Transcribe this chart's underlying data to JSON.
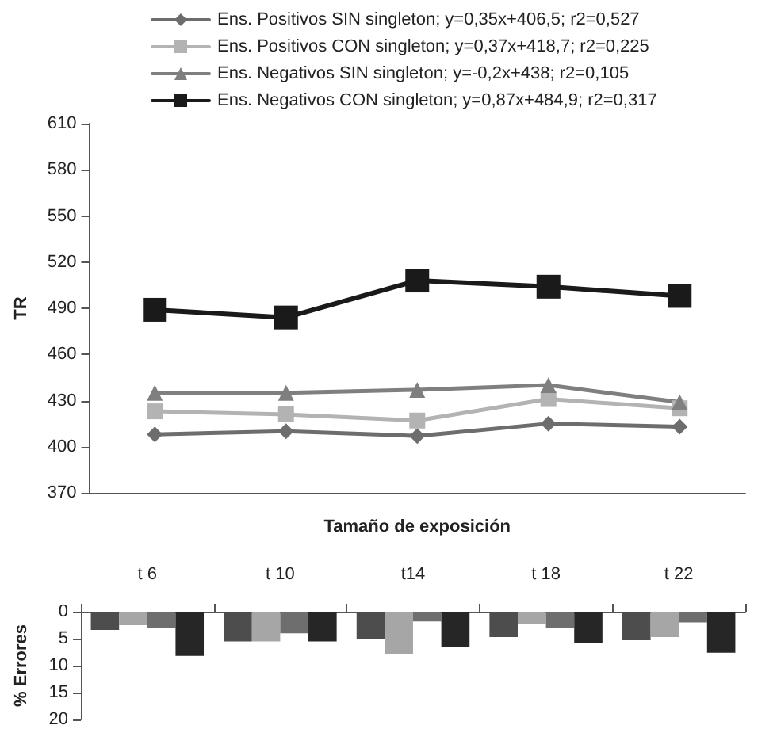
{
  "chart_data": [
    {
      "type": "line",
      "xlabel": "Tamaño de exposición",
      "ylabel": "TR",
      "categories": [
        null,
        null,
        null,
        null,
        null
      ],
      "tick_labels": "y",
      "ylim": [
        370,
        610
      ],
      "yticks": [
        370,
        400,
        430,
        460,
        490,
        520,
        550,
        580,
        610
      ],
      "grid": false,
      "legend": "top",
      "line_style": "solid",
      "series": [
        {
          "name": "Ens. Positivos SIN singleton; y=0,35x+406,5; r2=0,527",
          "color": "#6d6d6d",
          "marker": "diamond",
          "values": [
            408,
            410,
            407,
            415,
            413
          ]
        },
        {
          "name": "Ens. Positivos CON singleton; y=0,37x+418,7; r2=0,225",
          "color": "#b3b3b3",
          "marker": "square",
          "values": [
            423,
            421,
            417,
            431,
            425
          ]
        },
        {
          "name": "Ens. Negativos SIN singleton; y=-0,2x+438; r2=0,105",
          "color": "#7f7f7f",
          "marker": "triangle",
          "values": [
            435,
            435,
            437,
            440,
            429
          ]
        },
        {
          "name": "Ens. Negativos CON singleton; y=0,87x+484,9; r2=0,317",
          "color": "#1a1a1a",
          "marker": "square",
          "values": [
            489,
            484,
            508,
            504,
            498
          ]
        }
      ]
    },
    {
      "type": "bar",
      "ylabel": "% Errores",
      "categories": [
        "t 6",
        "t 10",
        "t14",
        "t 18",
        "t 22"
      ],
      "ylim": [
        20,
        0
      ],
      "yticks": [
        0,
        5,
        10,
        15,
        20
      ],
      "grid": false,
      "legend": false,
      "series": [
        {
          "color": "#4d4d4d",
          "values": [
            3.4,
            5.5,
            5,
            4.7,
            5.3
          ]
        },
        {
          "color": "#a6a6a6",
          "values": [
            2.5,
            5.5,
            7.8,
            2.2,
            4.7
          ]
        },
        {
          "color": "#6e6e6e",
          "values": [
            3,
            4,
            1.8,
            3,
            2
          ]
        },
        {
          "color": "#262626",
          "values": [
            8.2,
            5.5,
            6.6,
            5.9,
            7.6
          ]
        }
      ]
    }
  ]
}
